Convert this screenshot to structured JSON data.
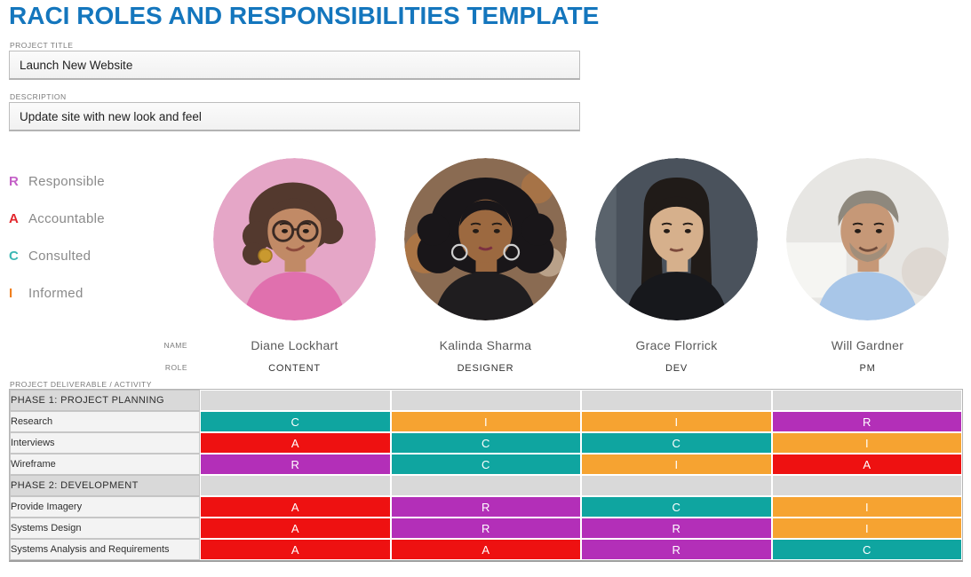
{
  "title": "RACI ROLES AND RESPONSIBILITIES TEMPLATE",
  "title_color": "#1476bd",
  "project": {
    "label": "PROJECT TITLE",
    "value": "Launch New Website"
  },
  "description": {
    "label": "DESCRIPTION",
    "value": "Update site with new look and feel"
  },
  "legend": {
    "items": [
      {
        "letter": "R",
        "label": "Responsible",
        "color": "#c45fc7"
      },
      {
        "letter": "A",
        "label": "Accountable",
        "color": "#e2252b"
      },
      {
        "letter": "C",
        "label": "Consulted",
        "color": "#3cb7b4"
      },
      {
        "letter": "I",
        "label": "Informed",
        "color": "#f0801f"
      }
    ]
  },
  "team": {
    "name_label": "NAME",
    "role_label": "ROLE",
    "members": [
      {
        "name": "Diane Lockhart",
        "role": "CONTENT",
        "photo": "diane-lockhart-portrait",
        "portrait": {
          "style": "curly-short",
          "bg": "#e5a6c7",
          "hair": "#53392e",
          "skin": "#c18a66",
          "top": "#e070ae",
          "accent": "#c9992f"
        }
      },
      {
        "name": "Kalinda Sharma",
        "role": "DESIGNER",
        "photo": "kalinda-sharma-portrait",
        "portrait": {
          "style": "curly-big",
          "bg": "#8a6b52",
          "hair": "#191619",
          "skin": "#9c6940",
          "top": "#1f1d1f",
          "accent": "#c77e3a"
        }
      },
      {
        "name": "Grace Florrick",
        "role": "DEV",
        "photo": "grace-florrick-portrait",
        "portrait": {
          "style": "long-straight",
          "bg": "#4a525c",
          "hair": "#201b18",
          "skin": "#d6b08c",
          "top": "#17181c",
          "accent": "#6a737c"
        }
      },
      {
        "name": "Will Gardner",
        "role": "PM",
        "photo": "will-gardner-portrait",
        "portrait": {
          "style": "short",
          "bg": "#e7e6e3",
          "hair": "#8e887d",
          "skin": "#c69877",
          "top": "#a8c6e8",
          "accent": "#f7f7f5"
        }
      }
    ]
  },
  "matrix": {
    "label": "PROJECT DELIVERABLE / ACTIVITY",
    "raci_colors": {
      "R": "#b32fb8",
      "A": "#ee1111",
      "C": "#0fa5a0",
      "I": "#f6a331"
    },
    "sections": [
      {
        "phase": "PHASE 1: PROJECT PLANNING",
        "rows": [
          {
            "activity": "Research",
            "codes": [
              "C",
              "I",
              "I",
              "R"
            ]
          },
          {
            "activity": "Interviews",
            "codes": [
              "A",
              "C",
              "C",
              "I"
            ]
          },
          {
            "activity": "Wireframe",
            "codes": [
              "R",
              "C",
              "I",
              "A"
            ]
          }
        ]
      },
      {
        "phase": "PHASE 2: DEVELOPMENT",
        "rows": [
          {
            "activity": "Provide Imagery",
            "codes": [
              "A",
              "R",
              "C",
              "I"
            ]
          },
          {
            "activity": "Systems Design",
            "codes": [
              "A",
              "R",
              "R",
              "I"
            ]
          },
          {
            "activity": "Systems Analysis and Requirements",
            "codes": [
              "A",
              "A",
              "R",
              "C"
            ]
          }
        ]
      }
    ]
  }
}
